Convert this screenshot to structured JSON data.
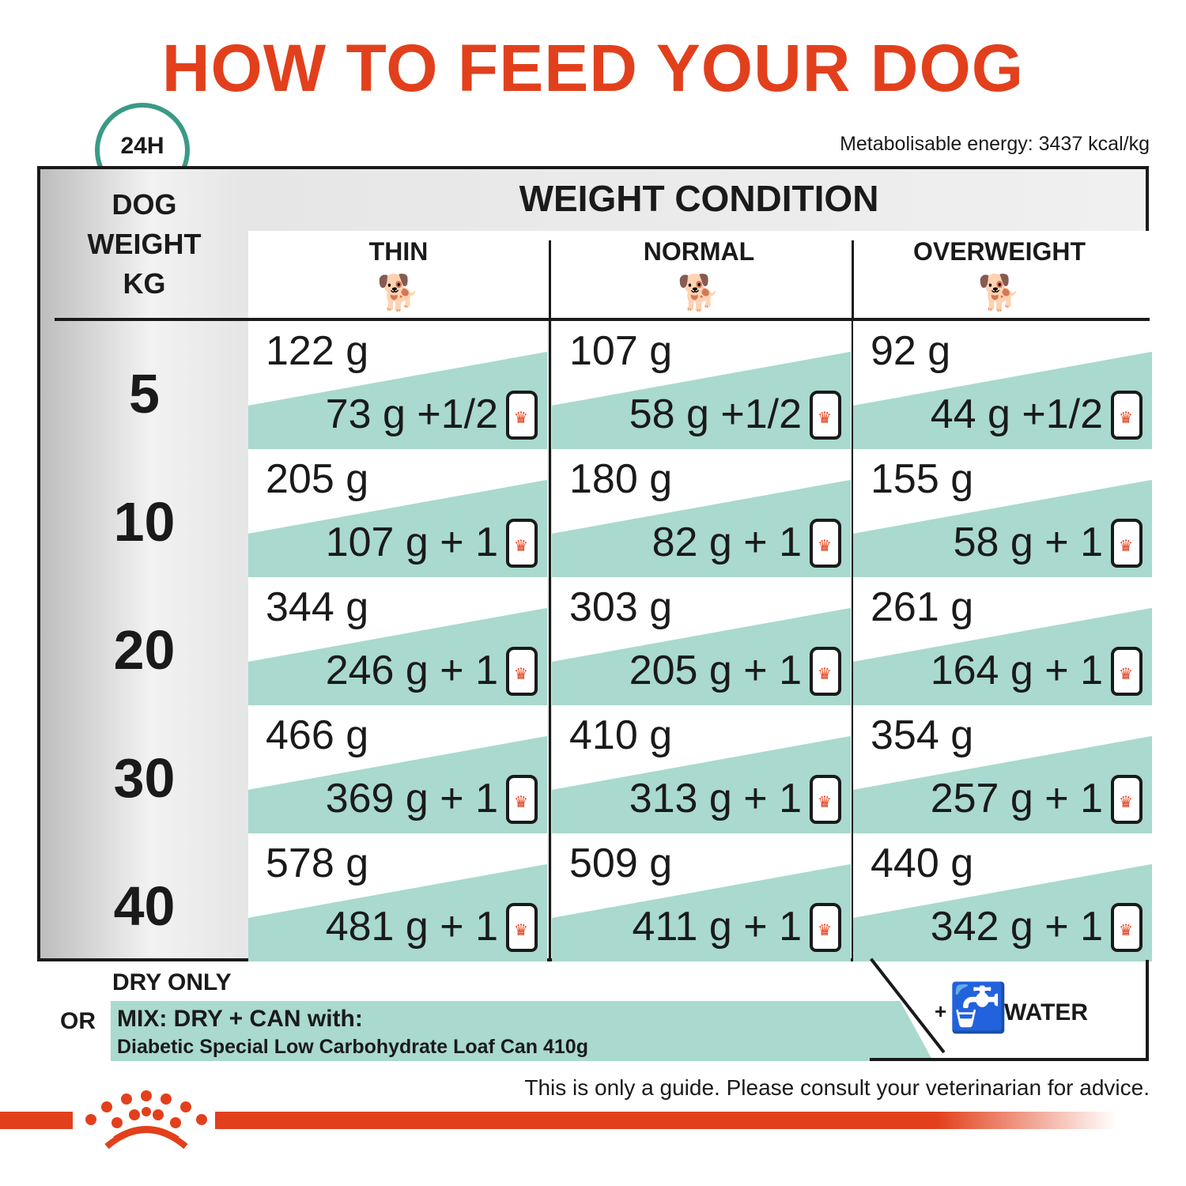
{
  "title": "HOW TO FEED YOUR DOG",
  "clock_label": "24H",
  "metabolisable_energy": "Metabolisable energy: 3437 kcal/kg",
  "left_header": [
    "DOG",
    "WEIGHT",
    "KG"
  ],
  "weight_condition": "WEIGHT CONDITION",
  "columns": [
    "THIN",
    "NORMAL",
    "OVERWEIGHT"
  ],
  "rows": [
    {
      "kg": "5",
      "cells": [
        {
          "dry": "122 g",
          "mix": "73 g +1/2"
        },
        {
          "dry": "107 g",
          "mix": "58 g +1/2"
        },
        {
          "dry": "92 g",
          "mix": "44 g +1/2"
        }
      ]
    },
    {
      "kg": "10",
      "cells": [
        {
          "dry": "205 g",
          "mix": "107 g + 1"
        },
        {
          "dry": "180 g",
          "mix": "82 g + 1"
        },
        {
          "dry": "155 g",
          "mix": "58 g + 1"
        }
      ]
    },
    {
      "kg": "20",
      "cells": [
        {
          "dry": "344 g",
          "mix": "246 g + 1"
        },
        {
          "dry": "303 g",
          "mix": "205 g + 1"
        },
        {
          "dry": "261 g",
          "mix": "164 g + 1"
        }
      ]
    },
    {
      "kg": "30",
      "cells": [
        {
          "dry": "466 g",
          "mix": "369 g + 1"
        },
        {
          "dry": "410 g",
          "mix": "313 g + 1"
        },
        {
          "dry": "354 g",
          "mix": "257 g + 1"
        }
      ]
    },
    {
      "kg": "40",
      "cells": [
        {
          "dry": "578 g",
          "mix": "481 g + 1"
        },
        {
          "dry": "509 g",
          "mix": "411 g + 1"
        },
        {
          "dry": "440 g",
          "mix": "342 g + 1"
        }
      ]
    }
  ],
  "legend": {
    "dry_only": "DRY ONLY",
    "or": "OR",
    "mix_line1": "MIX: DRY + CAN with:",
    "mix_line2": "Diabetic Special Low Carbohydrate Loaf Can 410g",
    "water": "WATER",
    "plus": "+"
  },
  "disclaimer": "This is only a guide. Please consult your veterinarian for advice.",
  "colors": {
    "title": "#e2401c",
    "teal": "#a9d9cf",
    "clock": "#3a9a86"
  },
  "icons": [
    "clock-icon",
    "dog-thin-icon",
    "dog-normal-icon",
    "dog-overweight-icon",
    "can-icon",
    "tap-water-icon",
    "royal-canin-crown-logo"
  ]
}
